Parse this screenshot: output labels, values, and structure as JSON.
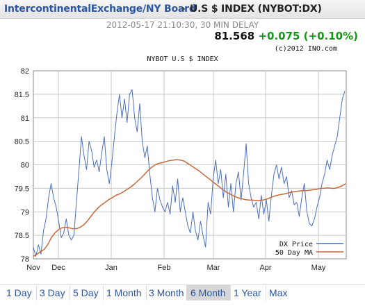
{
  "header": {
    "breadcrumb_link": "IntercontinentalExchange/NY Board",
    "separator": "›",
    "title": "U.S $ INDEX (NYBOT:DX)"
  },
  "timestamp": "2012-05-17 21:10:30, 30 MIN DELAY",
  "quote": {
    "price": "81.568",
    "change": "+0.075 (+0.10%)",
    "change_color": "#119911",
    "copyright": "(c)2012 INO.com"
  },
  "colors": {
    "price_line": "#4a6fc0",
    "ma_line": "#c8683a",
    "grid": "#c8c8c8",
    "link": "#2a56a6",
    "active_tab_bg": "#d6d6d6"
  },
  "chart_data": {
    "type": "line",
    "title": "NYBOT U.S $ INDEX",
    "xlabel": "",
    "ylabel": "",
    "ylim": [
      78,
      82
    ],
    "y_ticks": [
      "82",
      "81.5",
      "81",
      "80.5",
      "80",
      "79.5",
      "79",
      "78.5",
      "78"
    ],
    "x_ticks": [
      "Nov",
      "Dec",
      "Jan",
      "Feb",
      "Mar",
      "Apr",
      "May"
    ],
    "grid": true,
    "legend_position": "bottom-right",
    "series": [
      {
        "name": "DX Price",
        "values": [
          78.25,
          78.05,
          78.3,
          78.1,
          78.6,
          78.85,
          79.3,
          79.6,
          79.3,
          79.1,
          78.8,
          78.45,
          78.55,
          78.85,
          78.5,
          78.4,
          78.5,
          79.2,
          79.9,
          80.6,
          80.2,
          79.9,
          80.5,
          80.3,
          79.95,
          80.1,
          79.85,
          80.25,
          80.6,
          79.9,
          79.6,
          80.05,
          80.6,
          81.1,
          81.5,
          81.0,
          81.4,
          80.9,
          81.5,
          81.6,
          81.0,
          80.7,
          81.3,
          80.5,
          80.15,
          80.4,
          79.8,
          79.3,
          79.0,
          79.5,
          79.25,
          79.1,
          79.0,
          79.2,
          78.95,
          79.55,
          79.2,
          79.7,
          79.0,
          79.3,
          79.0,
          78.7,
          78.55,
          79.0,
          78.6,
          78.4,
          78.8,
          78.5,
          78.25,
          79.2,
          78.95,
          79.7,
          80.1,
          79.6,
          79.9,
          79.3,
          79.8,
          79.1,
          79.6,
          79.0,
          79.6,
          79.85,
          79.25,
          79.8,
          80.45,
          79.6,
          79.3,
          79.1,
          79.2,
          78.85,
          79.35,
          78.95,
          79.25,
          78.8,
          79.35,
          79.8,
          80.0,
          79.7,
          79.95,
          79.6,
          79.75,
          79.3,
          79.45,
          79.15,
          79.2,
          78.9,
          79.3,
          79.6,
          79.0,
          78.75,
          78.7,
          78.85,
          79.1,
          79.3,
          79.6,
          79.8,
          80.1,
          79.9,
          80.2,
          80.4,
          80.6,
          81.0,
          81.4,
          81.57
        ]
      },
      {
        "name": "50 Day MA",
        "values": [
          78.05,
          78.1,
          78.15,
          78.2,
          78.3,
          78.45,
          78.55,
          78.62,
          78.66,
          78.67,
          78.66,
          78.64,
          78.64,
          78.67,
          78.72,
          78.8,
          78.9,
          79.0,
          79.08,
          79.15,
          79.2,
          79.26,
          79.3,
          79.35,
          79.38,
          79.42,
          79.47,
          79.52,
          79.58,
          79.65,
          79.72,
          79.8,
          79.88,
          79.95,
          80.0,
          80.03,
          80.05,
          80.07,
          80.09,
          80.1,
          80.11,
          80.1,
          80.08,
          80.03,
          79.98,
          79.93,
          79.88,
          79.82,
          79.76,
          79.7,
          79.64,
          79.58,
          79.52,
          79.46,
          79.41,
          79.37,
          79.33,
          79.3,
          79.28,
          79.26,
          79.25,
          79.25,
          79.24,
          79.24,
          79.25,
          79.27,
          79.3,
          79.33,
          79.35,
          79.37,
          79.38,
          79.4,
          79.42,
          79.43,
          79.44,
          79.45,
          79.45,
          79.46,
          79.47,
          79.48,
          79.5,
          79.5,
          79.51,
          79.5,
          79.5,
          79.52,
          79.55,
          79.6
        ]
      }
    ]
  },
  "range_tabs": [
    {
      "label": "1 Day",
      "active": false
    },
    {
      "label": "3 Day",
      "active": false
    },
    {
      "label": "5 Day",
      "active": false
    },
    {
      "label": "1 Month",
      "active": false
    },
    {
      "label": "3 Month",
      "active": false
    },
    {
      "label": "6 Month",
      "active": true
    },
    {
      "label": "1 Year",
      "active": false
    },
    {
      "label": "Max",
      "active": false
    }
  ]
}
